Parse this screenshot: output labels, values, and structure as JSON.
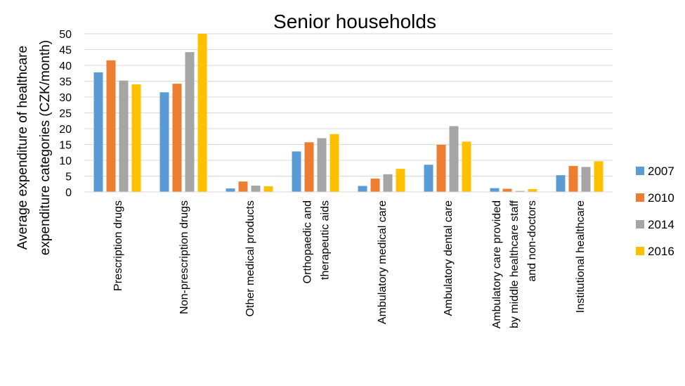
{
  "chart_data": {
    "type": "bar",
    "title": "Senior households",
    "ylabel": [
      "Average expenditure of  healthcare",
      "expenditure categories (CZK/month)"
    ],
    "xlabel": "",
    "ylim": [
      0,
      50
    ],
    "yticks": [
      0,
      5,
      10,
      15,
      20,
      25,
      30,
      35,
      40,
      45,
      50
    ],
    "grid": true,
    "legend_position": "right",
    "categories": [
      [
        "Prescription drugs"
      ],
      [
        "Non-prescription drugs"
      ],
      [
        "Other medical products"
      ],
      [
        "Orthopaedic and",
        "therapeutic aids"
      ],
      [
        "Ambulatory medical care"
      ],
      [
        "Ambulatory dental care"
      ],
      [
        "Ambulatory care provided",
        "by middle healthcare staff",
        "and non-doctors"
      ],
      [
        "Institutional healthcare"
      ]
    ],
    "series": [
      {
        "name": "2007",
        "color": "#5b9bd5",
        "values": [
          37.8,
          31.5,
          1.1,
          12.8,
          1.9,
          8.6,
          1.2,
          5.3
        ]
      },
      {
        "name": "2010",
        "color": "#ed7d31",
        "values": [
          41.6,
          34.2,
          3.3,
          15.7,
          4.2,
          14.9,
          1.0,
          8.2
        ]
      },
      {
        "name": "2014",
        "color": "#a5a5a5",
        "values": [
          35.2,
          44.2,
          2.0,
          17.0,
          5.6,
          20.8,
          0.3,
          7.9
        ]
      },
      {
        "name": "2016",
        "color": "#ffc000",
        "values": [
          34.0,
          50.0,
          1.8,
          18.3,
          7.3,
          15.9,
          0.9,
          9.7
        ]
      }
    ]
  }
}
